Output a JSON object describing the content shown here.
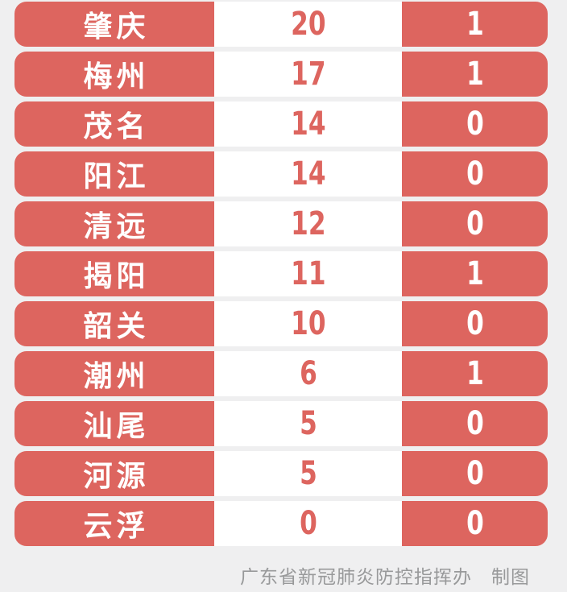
{
  "colors": {
    "accent_red": "#dd655f",
    "cell_white": "#ffffff",
    "page_background": "#efeff0",
    "footer_text": "#98999a"
  },
  "footer": {
    "credit": "广东省新冠肺炎防控指挥办　制图"
  },
  "chart_data": {
    "type": "table",
    "rows": [
      {
        "name": "肇庆",
        "value": 20,
        "secondary": 1
      },
      {
        "name": "梅州",
        "value": 17,
        "secondary": 1
      },
      {
        "name": "茂名",
        "value": 14,
        "secondary": 0
      },
      {
        "name": "阳江",
        "value": 14,
        "secondary": 0
      },
      {
        "name": "清远",
        "value": 12,
        "secondary": 0
      },
      {
        "name": "揭阳",
        "value": 11,
        "secondary": 1
      },
      {
        "name": "韶关",
        "value": 10,
        "secondary": 0
      },
      {
        "name": "潮州",
        "value": 6,
        "secondary": 1
      },
      {
        "name": "汕尾",
        "value": 5,
        "secondary": 0
      },
      {
        "name": "河源",
        "value": 5,
        "secondary": 0
      },
      {
        "name": "云浮",
        "value": 0,
        "secondary": 0
      }
    ],
    "source_credit": "广东省新冠肺炎防控指挥办　制图"
  }
}
